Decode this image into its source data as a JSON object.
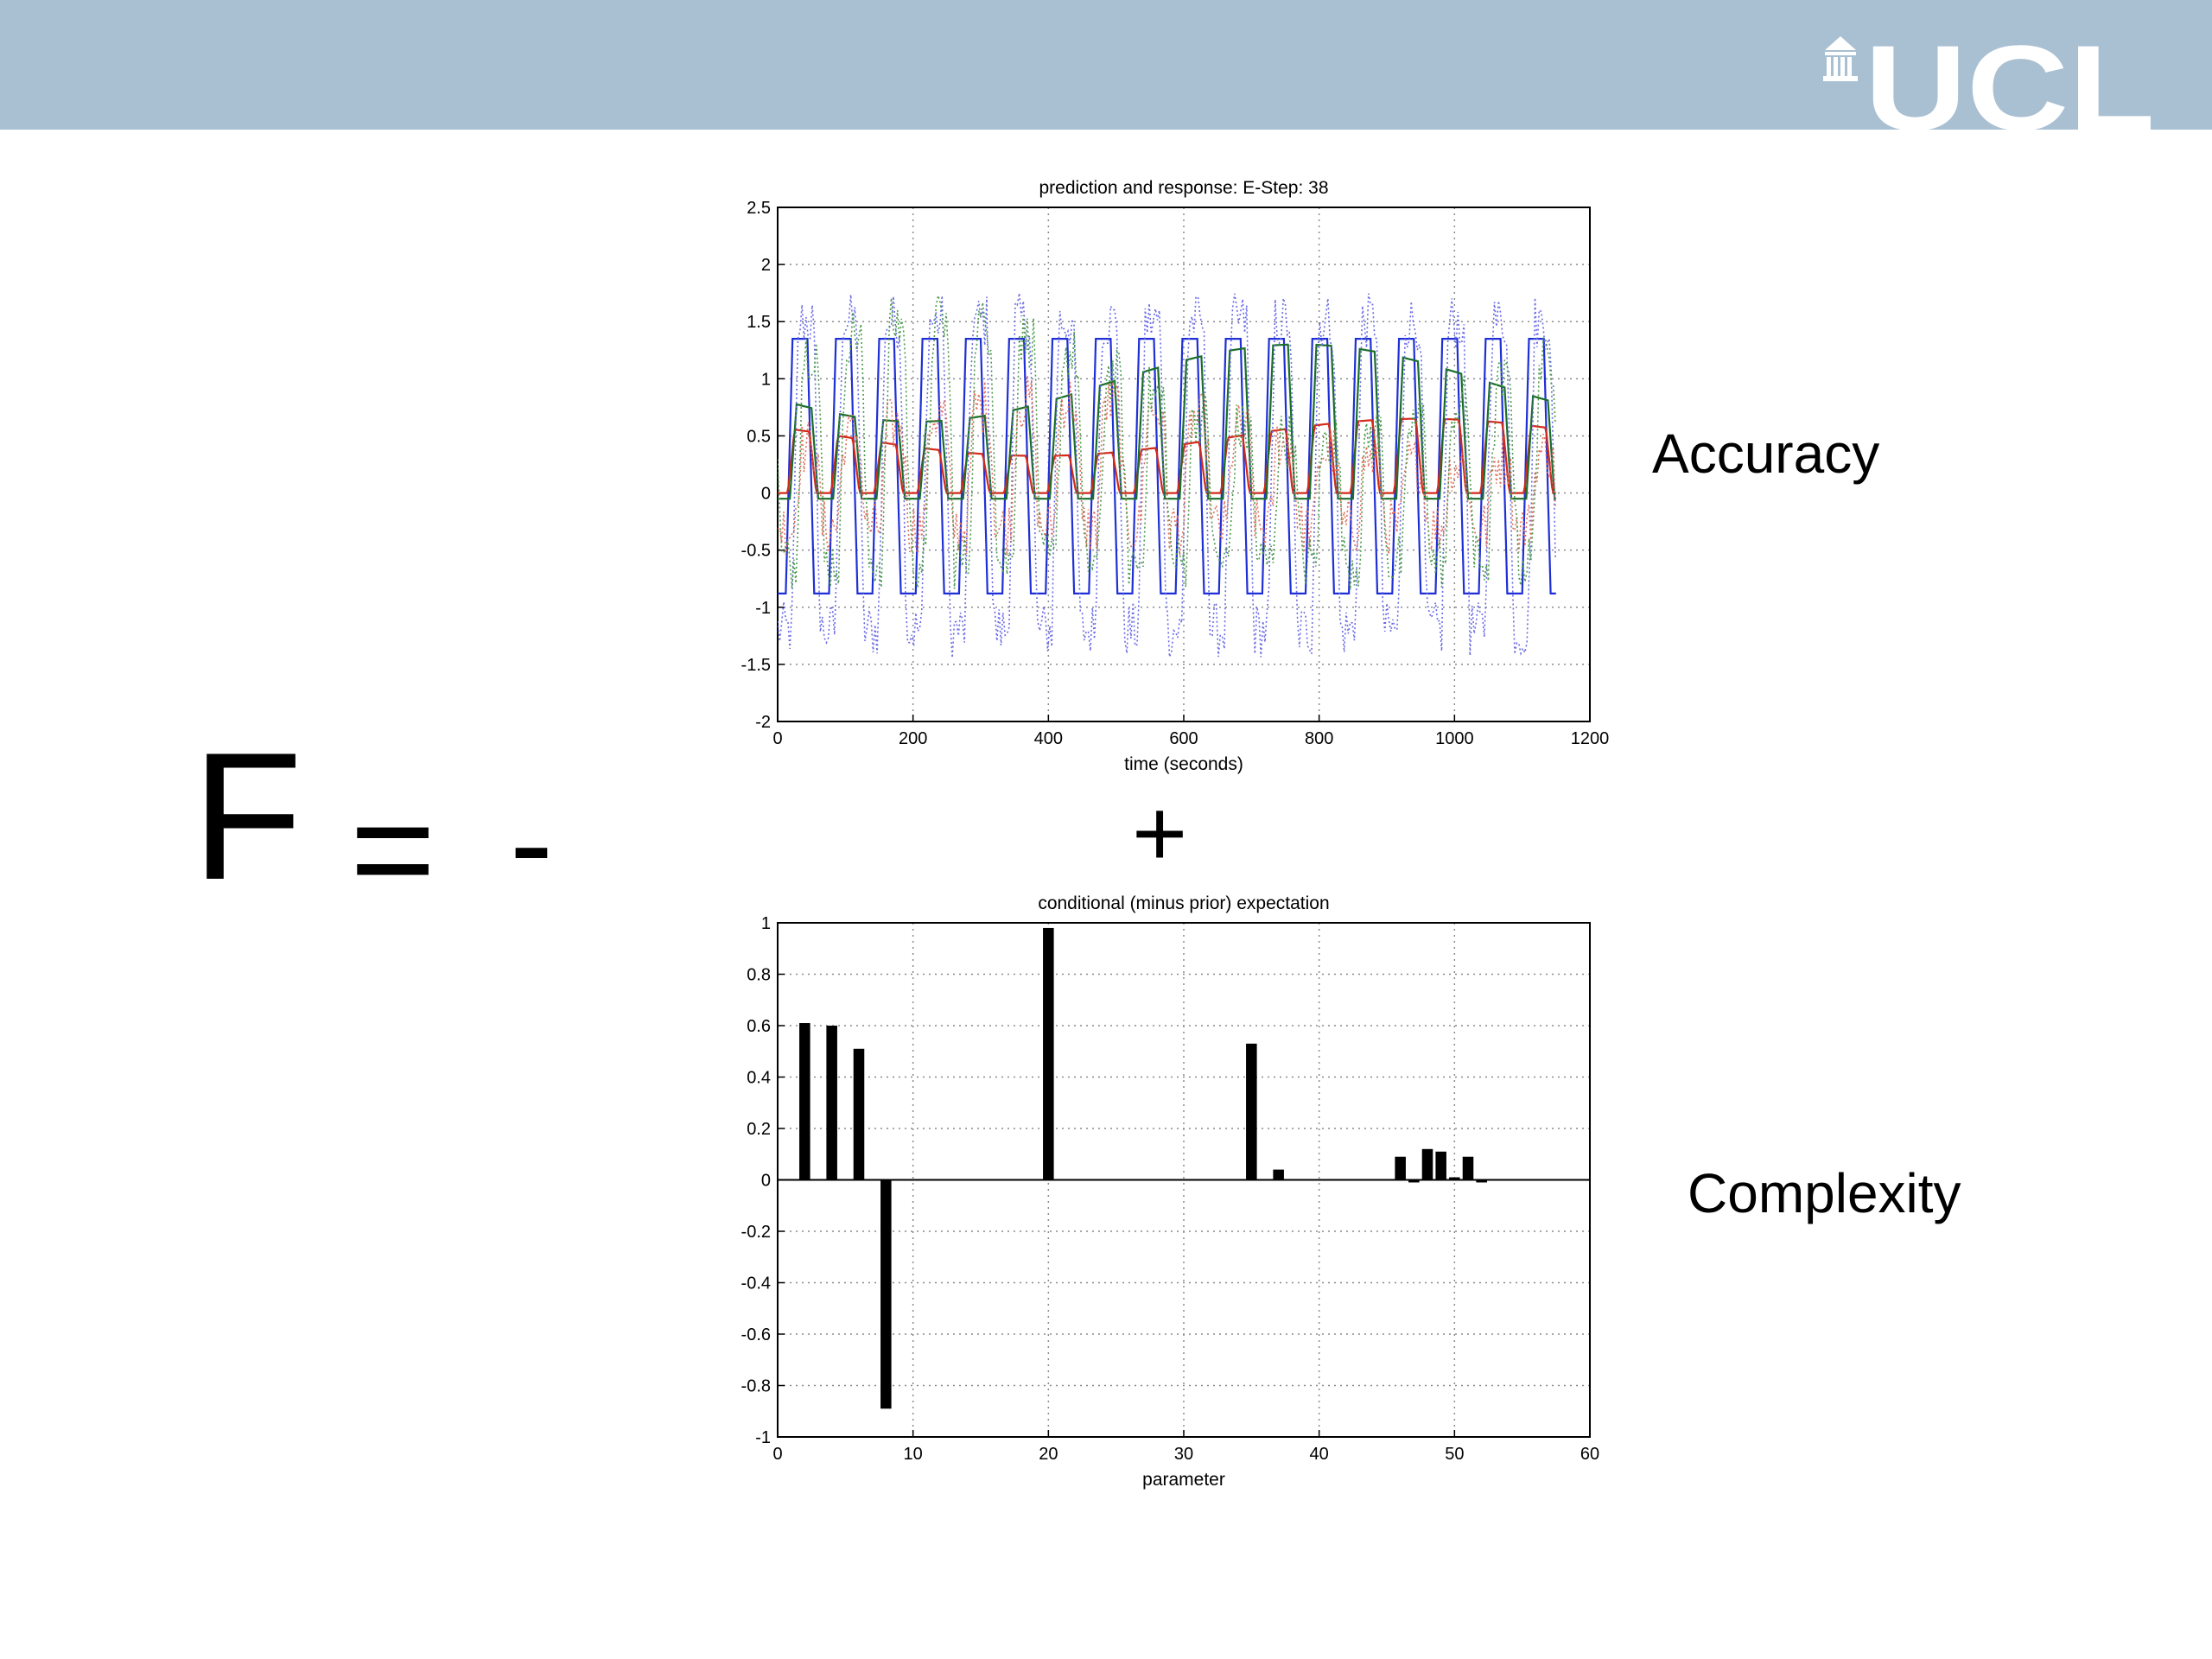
{
  "slide": {
    "logo_text": "UCL",
    "equation": {
      "f": "F",
      "equals": "=",
      "minus": "-",
      "plus": "+"
    },
    "accuracy_label": "Accuracy",
    "complexity_label": "Complexity",
    "colors": {
      "banner": "#a9c0d3",
      "logo": "#ffffff"
    }
  },
  "chart_data": [
    {
      "type": "line",
      "title": "prediction and response: E-Step: 38",
      "xlabel": "time (seconds)",
      "ylabel": "",
      "xlim": [
        0,
        1200
      ],
      "ylim": [
        -2,
        2.5
      ],
      "xticks": [
        0,
        200,
        400,
        600,
        800,
        1000,
        1200
      ],
      "yticks": [
        -2,
        -1.5,
        -1,
        -0.5,
        0,
        0.5,
        1,
        1.5,
        2,
        2.5
      ],
      "grid": true,
      "block_period_seconds": 64,
      "series": [
        {
          "style": "solid",
          "color": "#1f2fd6",
          "high": 1.35,
          "low": -0.88
        },
        {
          "style": "solid",
          "color": "#d42a1a",
          "high": 0.65,
          "low": 0.0
        },
        {
          "style": "solid",
          "color": "#1a6e2a",
          "high": 1.3,
          "low": -0.05
        },
        {
          "style": "dotted",
          "color": "#6a6ae6",
          "high": 1.5,
          "low": -1.2
        },
        {
          "style": "dotted",
          "color": "#e07060",
          "high": 0.8,
          "low": -0.3
        },
        {
          "style": "dotted",
          "color": "#4a9a4a",
          "high": 1.5,
          "low": -0.6
        }
      ]
    },
    {
      "type": "bar",
      "title": "conditional (minus prior) expectation",
      "xlabel": "parameter",
      "ylabel": "",
      "xlim": [
        0,
        60
      ],
      "ylim": [
        -1,
        1
      ],
      "xticks": [
        0,
        10,
        20,
        30,
        40,
        50,
        60
      ],
      "yticks": [
        -1,
        -0.8,
        -0.6,
        -0.4,
        -0.2,
        0,
        0.2,
        0.4,
        0.6,
        0.8,
        1
      ],
      "grid": true,
      "color": "#000000",
      "x": [
        2,
        4,
        6,
        8,
        20,
        35,
        37,
        46,
        47,
        48,
        49,
        50,
        51,
        52
      ],
      "values": [
        0.61,
        0.6,
        0.51,
        -0.89,
        0.98,
        0.53,
        0.04,
        0.09,
        -0.01,
        0.12,
        0.11,
        0.01,
        0.09,
        -0.01
      ]
    }
  ]
}
